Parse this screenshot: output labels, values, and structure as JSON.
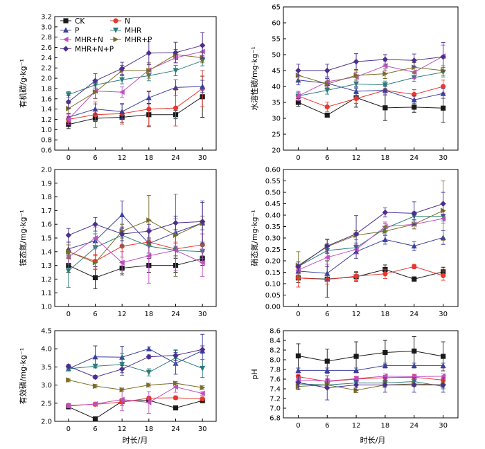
{
  "figure": {
    "x_axis_title": "时长/月"
  },
  "legend": [
    {
      "name": "CK",
      "color": "#1a1a1a",
      "marker": "square"
    },
    {
      "name": "N",
      "color": "#e8382f",
      "marker": "circle"
    },
    {
      "name": "P",
      "color": "#3b3f9e",
      "marker": "triangle-up"
    },
    {
      "name": "MHR",
      "color": "#2a7d7b",
      "marker": "triangle-down"
    },
    {
      "name": "MHR+N",
      "color": "#c050c0",
      "marker": "triangle-left"
    },
    {
      "name": "MHR+P",
      "color": "#7a6d2a",
      "marker": "triangle-right"
    },
    {
      "name": "MHR+N+P",
      "color": "#4b2f8f",
      "marker": "diamond"
    }
  ],
  "chart_data": [
    {
      "type": "line",
      "ylabel": "有机碳/g·kg⁻¹",
      "x": [
        0,
        6,
        12,
        18,
        24,
        30
      ],
      "xticks": [
        "0",
        "6",
        "12",
        "18",
        "24",
        "30"
      ],
      "ylim": [
        0.6,
        3.2
      ],
      "yticks": [
        "0.6",
        "0.8",
        "1.0",
        "1.2",
        "1.4",
        "1.6",
        "1.8",
        "2.0",
        "2.2",
        "2.4",
        "2.6",
        "2.8",
        "3.0",
        "3.2"
      ],
      "series": [
        {
          "name": "CK",
          "values": [
            1.1,
            1.22,
            1.24,
            1.29,
            1.29,
            1.64
          ],
          "err": [
            0.08,
            0.06,
            0.1,
            0.22,
            0.08,
            0.4
          ]
        },
        {
          "name": "N",
          "values": [
            1.2,
            1.29,
            1.31,
            1.4,
            1.42,
            1.8
          ],
          "err": [
            0.06,
            0.25,
            0.2,
            0.35,
            0.35,
            0.35
          ]
        },
        {
          "name": "P",
          "values": [
            1.24,
            1.4,
            1.35,
            1.62,
            1.82,
            1.84
          ],
          "err": [
            0.08,
            0.1,
            0.14,
            0.12,
            0.15,
            0.12
          ]
        },
        {
          "name": "MHR",
          "values": [
            1.68,
            1.87,
            1.97,
            2.05,
            2.15,
            2.34
          ],
          "err": [
            0.06,
            0.1,
            0.08,
            0.1,
            0.1,
            0.1
          ]
        },
        {
          "name": "MHR+N",
          "values": [
            1.2,
            1.75,
            1.73,
            2.16,
            2.4,
            2.52
          ],
          "err": [
            0.1,
            0.15,
            0.1,
            0.1,
            0.1,
            0.1
          ]
        },
        {
          "name": "MHR+P",
          "values": [
            1.41,
            1.73,
            2.15,
            2.15,
            2.46,
            2.4
          ],
          "err": [
            0.1,
            0.12,
            0.1,
            0.15,
            0.1,
            0.1
          ]
        },
        {
          "name": "MHR+N+P",
          "values": [
            1.54,
            1.95,
            2.19,
            2.49,
            2.5,
            2.64
          ],
          "err": [
            0.12,
            0.14,
            0.12,
            0.22,
            0.2,
            0.25
          ]
        }
      ]
    },
    {
      "type": "line",
      "ylabel": "水溶性碳/mg·kg⁻¹",
      "x": [
        0,
        6,
        12,
        18,
        24,
        30
      ],
      "xticks": [
        "0",
        "6",
        "12",
        "18",
        "24",
        "30"
      ],
      "ylim": [
        20,
        65
      ],
      "yticks": [
        "20",
        "25",
        "30",
        "35",
        "40",
        "45",
        "50",
        "55",
        "60",
        "65"
      ],
      "series": [
        {
          "name": "CK",
          "values": [
            35.0,
            31.0,
            36.5,
            33.3,
            33.5,
            33.2
          ],
          "err": [
            1.2,
            0.6,
            3.0,
            4.0,
            1.6,
            4.5
          ]
        },
        {
          "name": "N",
          "values": [
            37.0,
            33.6,
            36.2,
            38.8,
            37.5,
            40.0
          ],
          "err": [
            1.5,
            1.5,
            1.5,
            1.5,
            1.5,
            2.0
          ]
        },
        {
          "name": "P",
          "values": [
            42.0,
            41.0,
            38.5,
            38.8,
            35.8,
            37.8
          ],
          "err": [
            1.5,
            1.5,
            1.5,
            1.2,
            1.2,
            1.5
          ]
        },
        {
          "name": "MHR",
          "values": [
            37.0,
            38.8,
            40.8,
            40.5,
            42.8,
            44.5
          ],
          "err": [
            1.2,
            1.2,
            1.2,
            1.2,
            1.2,
            1.5
          ]
        },
        {
          "name": "MHR+N",
          "values": [
            37.0,
            41.5,
            43.0,
            46.5,
            44.5,
            49.5
          ],
          "err": [
            1.5,
            1.5,
            1.5,
            1.5,
            2.0,
            3.5
          ]
        },
        {
          "name": "MHR+P",
          "values": [
            43.5,
            40.8,
            43.5,
            44.0,
            46.0,
            45.0
          ],
          "err": [
            1.5,
            1.2,
            1.5,
            1.5,
            1.5,
            1.5
          ]
        },
        {
          "name": "MHR+N+P",
          "values": [
            45.0,
            45.0,
            47.8,
            48.5,
            48.2,
            49.3
          ],
          "err": [
            2.0,
            2.0,
            2.5,
            1.5,
            2.0,
            4.5
          ]
        }
      ]
    },
    {
      "type": "line",
      "ylabel": "铵态氮/mg·kg⁻¹",
      "x": [
        0,
        6,
        12,
        18,
        24,
        30
      ],
      "xticks": [
        "0",
        "6",
        "12",
        "18",
        "24",
        "30"
      ],
      "ylim": [
        1.0,
        2.0
      ],
      "yticks": [
        "1.0",
        "1.1",
        "1.2",
        "1.3",
        "1.4",
        "1.5",
        "1.6",
        "1.7",
        "1.8",
        "1.9",
        "2.0"
      ],
      "series": [
        {
          "name": "CK",
          "values": [
            1.3,
            1.21,
            1.28,
            1.3,
            1.3,
            1.35
          ],
          "err": [
            0.05,
            0.08,
            0.05,
            0.05,
            0.05,
            0.05
          ]
        },
        {
          "name": "N",
          "values": [
            1.4,
            1.33,
            1.44,
            1.47,
            1.42,
            1.45
          ],
          "err": [
            0.05,
            0.05,
            0.08,
            0.08,
            0.05,
            0.08
          ]
        },
        {
          "name": "P",
          "values": [
            1.42,
            1.48,
            1.67,
            1.46,
            1.54,
            1.61
          ],
          "err": [
            0.05,
            0.05,
            0.1,
            0.1,
            0.1,
            0.15
          ]
        },
        {
          "name": "MHR",
          "values": [
            1.26,
            1.43,
            1.52,
            1.44,
            1.41,
            1.4
          ],
          "err": [
            0.12,
            0.1,
            0.08,
            0.05,
            0.05,
            0.05
          ]
        },
        {
          "name": "MHR+N",
          "values": [
            1.36,
            1.5,
            1.32,
            1.37,
            1.41,
            1.32
          ],
          "err": [
            0.05,
            0.08,
            0.08,
            0.2,
            0.15,
            0.1
          ]
        },
        {
          "name": "MHR+P",
          "values": [
            1.4,
            1.32,
            1.55,
            1.63,
            1.52,
            1.61
          ],
          "err": [
            0.05,
            0.05,
            0.05,
            0.18,
            0.3,
            0.05
          ]
        },
        {
          "name": "MHR+N+P",
          "values": [
            1.52,
            1.6,
            1.53,
            1.55,
            1.61,
            1.62
          ],
          "err": [
            0.05,
            0.05,
            0.05,
            0.05,
            0.05,
            0.15
          ]
        }
      ]
    },
    {
      "type": "line",
      "ylabel": "硝态氮/mg·kg⁻¹",
      "x": [
        0,
        6,
        12,
        18,
        24,
        30
      ],
      "xticks": [
        "0",
        "6",
        "12",
        "18",
        "24",
        "30"
      ],
      "ylim": [
        0.0,
        0.6
      ],
      "yticks": [
        "0.00",
        "0.05",
        "0.10",
        "0.15",
        "0.20",
        "0.25",
        "0.30",
        "0.35",
        "0.40",
        "0.45",
        "0.50",
        "0.55",
        "0.60"
      ],
      "series": [
        {
          "name": "CK",
          "values": [
            0.125,
            0.12,
            0.13,
            0.162,
            0.12,
            0.152
          ],
          "err": [
            0.02,
            0.08,
            0.02,
            0.02,
            0.01,
            0.02
          ]
        },
        {
          "name": "N",
          "values": [
            0.125,
            0.118,
            0.133,
            0.143,
            0.175,
            0.135
          ],
          "err": [
            0.04,
            0.02,
            0.02,
            0.02,
            0.01,
            0.02
          ]
        },
        {
          "name": "P",
          "values": [
            0.155,
            0.145,
            0.24,
            0.293,
            0.265,
            0.302
          ],
          "err": [
            0.02,
            0.03,
            0.03,
            0.02,
            0.02,
            0.03
          ]
        },
        {
          "name": "MHR",
          "values": [
            0.175,
            0.245,
            0.258,
            0.342,
            0.395,
            0.395
          ],
          "err": [
            0.02,
            0.03,
            0.02,
            0.02,
            0.02,
            0.02
          ]
        },
        {
          "name": "MHR+N",
          "values": [
            0.16,
            0.215,
            0.25,
            0.35,
            0.36,
            0.385
          ],
          "err": [
            0.02,
            0.03,
            0.02,
            0.02,
            0.02,
            0.02
          ]
        },
        {
          "name": "MHR+P",
          "values": [
            0.18,
            0.262,
            0.312,
            0.33,
            0.36,
            0.42
          ],
          "err": [
            0.06,
            0.03,
            0.02,
            0.02,
            0.02,
            0.13
          ]
        },
        {
          "name": "MHR+N+P",
          "values": [
            0.175,
            0.265,
            0.318,
            0.412,
            0.408,
            0.45
          ],
          "err": [
            0.02,
            0.03,
            0.08,
            0.02,
            0.05,
            0.05
          ]
        }
      ]
    },
    {
      "type": "line",
      "ylabel": "有效磷/mg·kg⁻¹",
      "x": [
        0,
        6,
        12,
        18,
        24,
        30
      ],
      "xticks": [
        "0",
        "6",
        "12",
        "18",
        "24",
        "30"
      ],
      "ylim": [
        2.0,
        4.5
      ],
      "yticks": [
        "2.0",
        "2.5",
        "3.0",
        "3.5",
        "4.0",
        "4.5"
      ],
      "series": [
        {
          "name": "CK",
          "values": [
            2.4,
            2.07,
            2.55,
            2.58,
            2.37,
            2.57
          ],
          "err": [
            0.05,
            0.05,
            0.05,
            0.05,
            0.05,
            0.05
          ]
        },
        {
          "name": "N",
          "values": [
            2.44,
            2.47,
            2.53,
            2.64,
            2.65,
            2.62
          ],
          "err": [
            0.05,
            0.05,
            0.1,
            0.05,
            0.05,
            0.05
          ]
        },
        {
          "name": "P",
          "values": [
            3.45,
            3.78,
            3.77,
            4.0,
            3.6,
            3.95
          ],
          "err": [
            0.05,
            0.3,
            0.3,
            0.05,
            0.3,
            0.45
          ]
        },
        {
          "name": "MHR",
          "values": [
            3.45,
            3.52,
            3.57,
            3.35,
            3.75,
            3.46
          ],
          "err": [
            0.05,
            0.05,
            0.3,
            0.1,
            0.2,
            0.25
          ]
        },
        {
          "name": "MHR+N",
          "values": [
            2.42,
            2.48,
            2.6,
            2.52,
            2.95,
            2.77
          ],
          "err": [
            0.05,
            0.05,
            0.3,
            0.3,
            0.15,
            0.05
          ]
        },
        {
          "name": "MHR+P",
          "values": [
            3.14,
            2.97,
            2.87,
            3.0,
            3.05,
            2.93
          ],
          "err": [
            0.05,
            0.05,
            0.05,
            0.05,
            0.05,
            0.05
          ]
        },
        {
          "name": "MHR+N+P",
          "values": [
            3.52,
            3.22,
            3.44,
            3.78,
            3.82,
            3.98
          ],
          "err": [
            0.05,
            0.05,
            0.1,
            0.05,
            0.15,
            0.1
          ]
        }
      ]
    },
    {
      "type": "line",
      "ylabel": "pH",
      "x": [
        0,
        6,
        12,
        18,
        24,
        30
      ],
      "xticks": [
        "0",
        "6",
        "12",
        "18",
        "24",
        "30"
      ],
      "ylim": [
        6.8,
        8.6
      ],
      "yticks": [
        "6.8",
        "7.0",
        "7.2",
        "7.4",
        "7.6",
        "7.8",
        "8.0",
        "8.2",
        "8.4",
        "8.6"
      ],
      "series": [
        {
          "name": "CK",
          "values": [
            8.08,
            7.97,
            8.07,
            8.15,
            8.18,
            8.07
          ],
          "err": [
            0.25,
            0.25,
            0.3,
            0.25,
            0.3,
            0.3
          ]
        },
        {
          "name": "N",
          "values": [
            7.65,
            7.55,
            7.6,
            7.63,
            7.64,
            7.58
          ],
          "err": [
            0.05,
            0.05,
            0.05,
            0.05,
            0.05,
            0.05
          ]
        },
        {
          "name": "P",
          "values": [
            7.78,
            7.78,
            7.78,
            7.88,
            7.88,
            7.88
          ],
          "err": [
            0.05,
            0.05,
            0.05,
            0.05,
            0.05,
            0.05
          ]
        },
        {
          "name": "MHR",
          "values": [
            7.5,
            7.48,
            7.52,
            7.52,
            7.55,
            7.45
          ],
          "err": [
            0.05,
            0.05,
            0.05,
            0.05,
            0.05,
            0.05
          ]
        },
        {
          "name": "MHR+N",
          "values": [
            7.58,
            7.56,
            7.61,
            7.66,
            7.65,
            7.66
          ],
          "err": [
            0.05,
            0.05,
            0.05,
            0.05,
            0.05,
            0.05
          ]
        },
        {
          "name": "MHR+P",
          "values": [
            7.45,
            7.48,
            7.37,
            7.48,
            7.5,
            7.48
          ],
          "err": [
            0.05,
            0.05,
            0.05,
            0.05,
            0.05,
            0.05
          ]
        },
        {
          "name": "MHR+N+P",
          "values": [
            7.53,
            7.42,
            7.48,
            7.48,
            7.48,
            7.48
          ],
          "err": [
            0.15,
            0.25,
            0.1,
            0.15,
            0.15,
            0.15
          ]
        }
      ]
    }
  ]
}
